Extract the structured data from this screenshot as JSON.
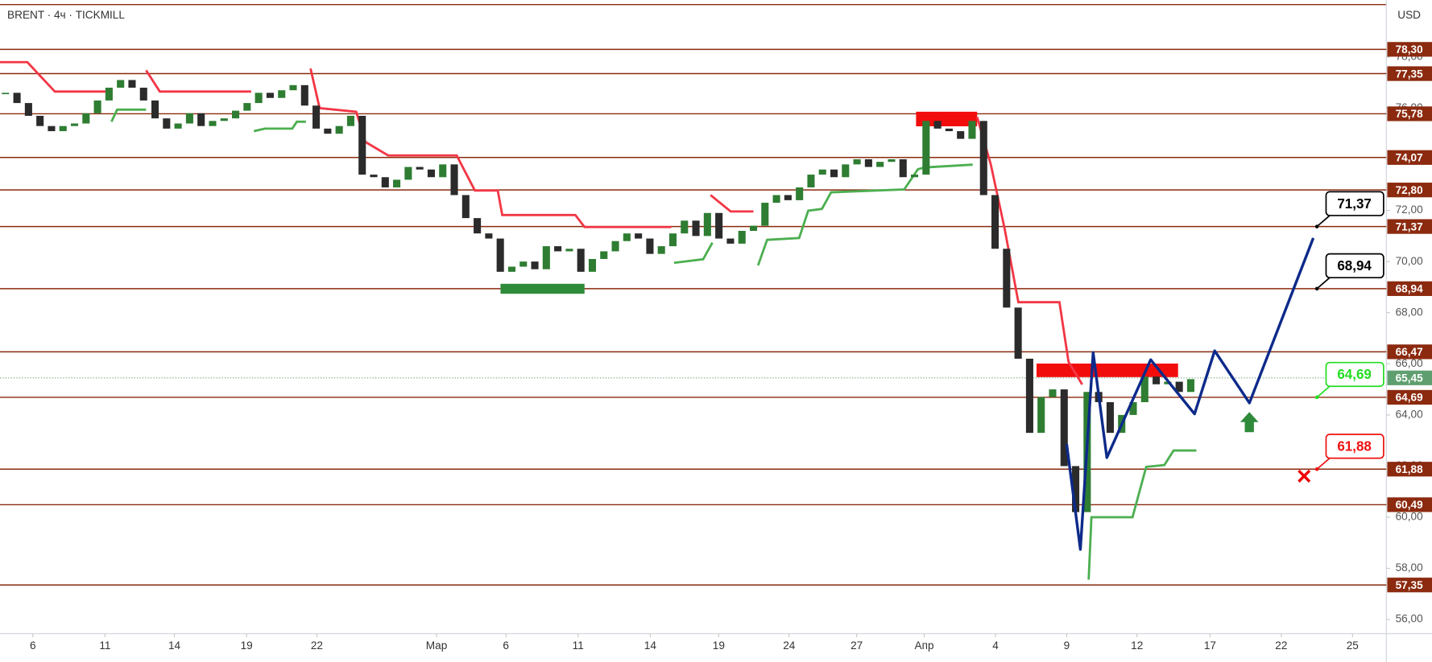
{
  "chart_data": {
    "type": "candlestick",
    "title": "BRENT · 4ч · TICKMILL",
    "currency": "USD",
    "xlim": [
      -0.476,
      119.76
    ],
    "ylim": [
      55.34,
      80.23
    ],
    "xticks": [
      {
        "value": 2.38,
        "label": "6"
      },
      {
        "value": 8.65,
        "label": "11"
      },
      {
        "value": 14.68,
        "label": "14"
      },
      {
        "value": 20.95,
        "label": "19"
      },
      {
        "value": 27.06,
        "label": "22"
      },
      {
        "value": 37.46,
        "label": "Мар"
      },
      {
        "value": 43.49,
        "label": "6"
      },
      {
        "value": 49.76,
        "label": "11"
      },
      {
        "value": 56.03,
        "label": "14"
      },
      {
        "value": 61.98,
        "label": "19"
      },
      {
        "value": 68.1,
        "label": "24"
      },
      {
        "value": 73.97,
        "label": "27"
      },
      {
        "value": 79.84,
        "label": "Апр"
      },
      {
        "value": 86.03,
        "label": "4"
      },
      {
        "value": 92.22,
        "label": "9"
      },
      {
        "value": 98.33,
        "label": "12"
      },
      {
        "value": 104.68,
        "label": "17"
      },
      {
        "value": 110.87,
        "label": "22"
      },
      {
        "value": 117.06,
        "label": "25"
      }
    ],
    "yticks": [
      {
        "value": 56,
        "label": "56,00"
      },
      {
        "value": 58,
        "label": "58,00"
      },
      {
        "value": 60,
        "label": "60,00"
      },
      {
        "value": 62,
        "label": "62,00"
      },
      {
        "value": 64,
        "label": "64,00"
      },
      {
        "value": 66,
        "label": "66,00"
      },
      {
        "value": 68,
        "label": "68,00"
      },
      {
        "value": 70,
        "label": "70,00"
      },
      {
        "value": 72,
        "label": "72,00"
      },
      {
        "value": 74,
        "label": "74,00"
      },
      {
        "value": 76,
        "label": "76,00"
      },
      {
        "value": 78,
        "label": "78,00"
      }
    ],
    "closes": [
      76.6,
      76.2,
      75.7,
      75.3,
      75.1,
      75.3,
      75.4,
      75.8,
      76.3,
      76.8,
      77.1,
      76.8,
      76.3,
      75.6,
      75.2,
      75.4,
      75.8,
      75.3,
      75.5,
      75.6,
      75.9,
      76.2,
      76.6,
      76.4,
      76.7,
      76.9,
      76.1,
      75.2,
      75.0,
      75.3,
      75.7,
      73.4,
      73.3,
      72.9,
      73.2,
      73.7,
      73.6,
      73.3,
      73.8,
      72.6,
      71.7,
      71.1,
      70.9,
      69.6,
      69.8,
      70.0,
      69.7,
      70.6,
      70.4,
      70.5,
      69.6,
      70.1,
      70.4,
      70.8,
      71.1,
      70.9,
      70.3,
      70.6,
      71.1,
      71.6,
      71.0,
      71.9,
      70.9,
      70.7,
      71.2,
      71.4,
      72.3,
      72.6,
      72.4,
      72.9,
      73.4,
      73.6,
      73.3,
      73.8,
      74.0,
      73.7,
      73.9,
      74.0,
      73.3,
      73.4,
      75.5,
      75.2,
      75.1,
      74.8,
      75.5,
      72.6,
      70.5,
      68.2,
      66.2,
      63.3,
      64.7,
      65.0,
      62.0,
      60.2,
      64.9,
      64.5,
      63.3,
      64.0,
      64.5,
      65.5,
      65.2,
      65.3,
      64.9,
      65.4
    ],
    "up_color": "#2e7d32",
    "down_color": "#2b2b2b",
    "levels": {
      "color": "#8b2a0f",
      "items": [
        {
          "value": 78.3,
          "label": "78,30"
        },
        {
          "value": 77.35,
          "label": "77,35"
        },
        {
          "value": 75.78,
          "label": "75,78"
        },
        {
          "value": 74.07,
          "label": "74,07"
        },
        {
          "value": 72.8,
          "label": "72,80"
        },
        {
          "value": 71.37,
          "label": "71,37"
        },
        {
          "value": 68.94,
          "label": "68,94"
        },
        {
          "value": 66.47,
          "label": "66,47"
        },
        {
          "value": 64.69,
          "label": "64,69"
        },
        {
          "value": 61.88,
          "label": "61,88"
        },
        {
          "value": 60.49,
          "label": "60,49"
        },
        {
          "value": 57.35,
          "label": "57,35"
        }
      ]
    },
    "last_price": {
      "value": 65.45,
      "label": "65,45",
      "color": "#5f9f6f"
    },
    "supertrend": [
      {
        "color": "#f23645",
        "x": [
          -0.48,
          1.9,
          4.29,
          9.05
        ],
        "values": [
          77.8,
          77.8,
          76.65,
          76.65
        ]
      },
      {
        "color": "#4caf50",
        "x": [
          9.21,
          9.7,
          12.22
        ],
        "values": [
          75.47,
          75.94,
          75.94
        ]
      },
      {
        "color": "#f23645",
        "x": [
          12.22,
          13.41,
          21.35
        ],
        "values": [
          77.48,
          76.65,
          76.65
        ]
      },
      {
        "color": "#4caf50",
        "x": [
          21.59,
          22.54,
          24.92,
          25.32,
          26.11
        ],
        "values": [
          75.1,
          75.2,
          75.2,
          75.47,
          75.47
        ]
      },
      {
        "color": "#f23645",
        "x": [
          26.51,
          27.3,
          30.48,
          31.27,
          33.25,
          39.21,
          40.79,
          42.78,
          43.17,
          49.52,
          50.32,
          57.86
        ],
        "values": [
          77.55,
          76.0,
          75.86,
          74.68,
          74.15,
          74.15,
          72.78,
          72.78,
          71.82,
          71.82,
          71.35,
          71.35
        ]
      },
      {
        "color": "#4caf50",
        "x": [
          58.1,
          60.63,
          61.43
        ],
        "values": [
          69.95,
          70.09,
          70.74
        ]
      },
      {
        "color": "#f23645",
        "x": [
          61.27,
          63.02,
          65.0
        ],
        "values": [
          72.6,
          71.96,
          71.96
        ]
      },
      {
        "color": "#4caf50",
        "x": [
          65.4,
          66.19,
          68.97,
          69.76,
          70.95,
          71.75,
          78.1,
          79.29,
          79.84,
          84.05
        ],
        "values": [
          69.85,
          70.85,
          70.92,
          71.99,
          72.06,
          72.71,
          72.82,
          73.61,
          73.68,
          73.79
        ]
      },
      {
        "color": "#f23645",
        "x": [
          84.44,
          85.63,
          86.83,
          88.02,
          91.59,
          92.38,
          93.57
        ],
        "values": [
          75.65,
          73.79,
          71.28,
          68.41,
          68.41,
          66.08,
          65.19
        ]
      },
      {
        "color": "#4caf50",
        "x": [
          94.13,
          94.37,
          97.94,
          99.13,
          100.71,
          101.51,
          103.49
        ],
        "values": [
          57.56,
          60.0,
          60.0,
          61.97,
          62.04,
          62.61,
          62.61
        ]
      }
    ],
    "zones": [
      {
        "color": "#2e8b3a",
        "x": [
          43.02,
          50.32
        ],
        "y": [
          68.74,
          69.13
        ]
      },
      {
        "color": "#f20d0d",
        "x": [
          79.13,
          84.44
        ],
        "y": [
          75.29,
          75.86
        ]
      },
      {
        "color": "#f20d0d",
        "x": [
          89.6,
          101.9
        ],
        "y": [
          65.48,
          66.01
        ]
      }
    ],
    "forecast": {
      "color": "#0d2a8a",
      "x": [
        92.22,
        93.41,
        94.52,
        95.71,
        99.52,
        103.33,
        105.08,
        108.1,
        113.65
      ],
      "values": [
        62.86,
        58.74,
        66.44,
        62.33,
        66.16,
        64.04,
        66.51,
        64.47,
        70.92
      ]
    },
    "callouts": [
      {
        "value": 71.37,
        "label": "71,37",
        "color": "#000000"
      },
      {
        "value": 68.94,
        "label": "68,94",
        "color": "#000000"
      },
      {
        "value": 64.69,
        "label": "64,69",
        "color": "#22dd22"
      },
      {
        "value": 61.88,
        "label": "61,88",
        "color": "#ee1111"
      }
    ]
  }
}
